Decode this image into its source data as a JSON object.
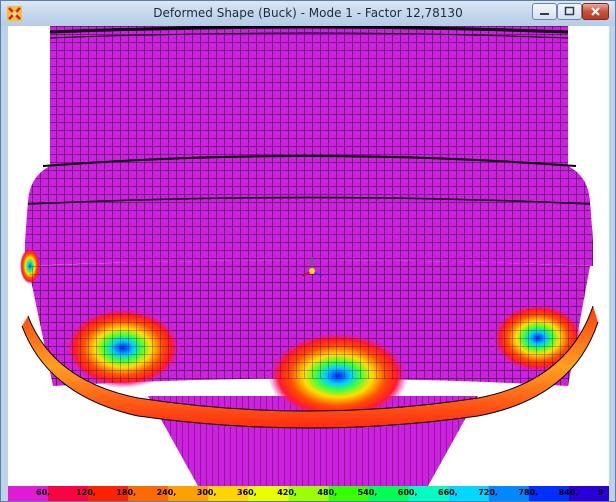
{
  "window": {
    "title": "Deformed Shape (Buck) - Mode 1 - Factor 12,78130",
    "icon": "app-icon",
    "controls": {
      "minimize": "minimize-icon",
      "maximize": "maximize-icon",
      "close": "close-icon"
    }
  },
  "viewport": {
    "model_color": "#cc22e0",
    "mesh_line_color": "#000000"
  },
  "legend": {
    "labels": [
      "60,",
      "120,",
      "180,",
      "240,",
      "300,",
      "360,",
      "420,",
      "480,",
      "540,",
      "600,",
      "660,",
      "720,",
      "780,",
      "840,",
      "9"
    ],
    "colors": [
      "#e21ad6",
      "#ff0044",
      "#ff2200",
      "#ff6a00",
      "#ffa000",
      "#ffd500",
      "#e8ff00",
      "#9cff00",
      "#38ff00",
      "#00ff55",
      "#00ffc0",
      "#00d8ff",
      "#0088ff",
      "#0030ff",
      "#2a00d8"
    ]
  }
}
